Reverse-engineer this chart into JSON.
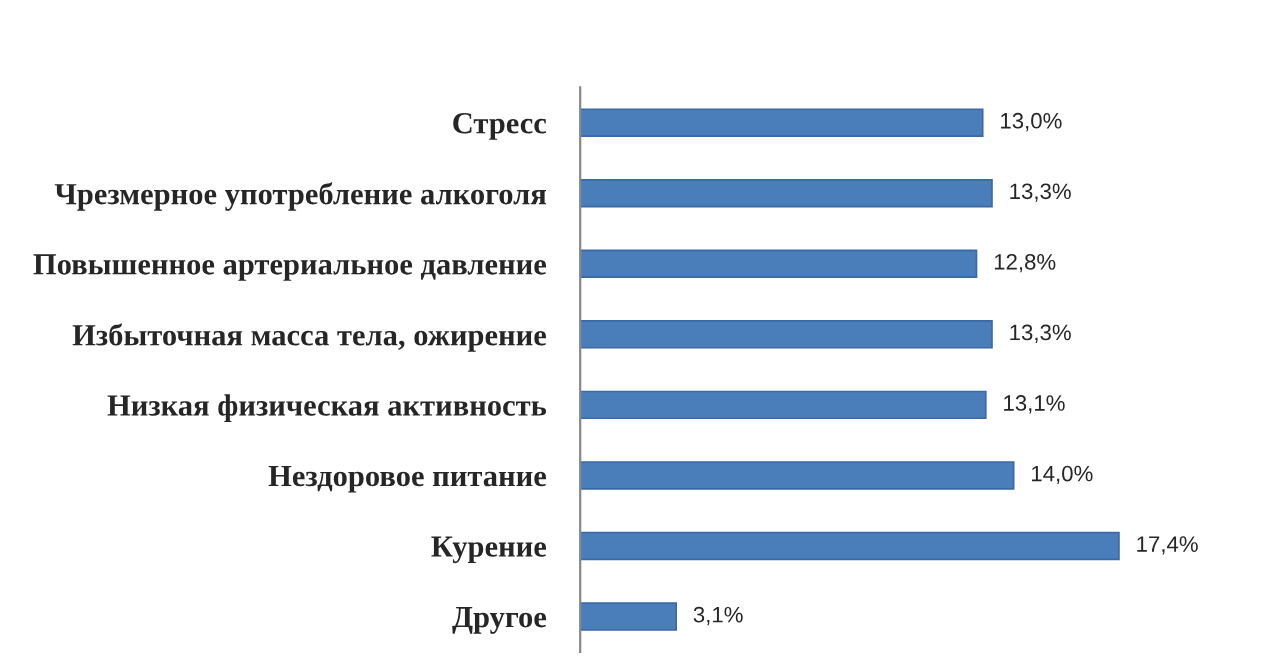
{
  "chart_data": {
    "type": "bar",
    "orientation": "horizontal",
    "categories": [
      "Стресс",
      "Чрезмерное употребление алкоголя",
      "Повышенное артериальное давление",
      "Избыточная масса тела, ожирение",
      "Низкая физическая активность",
      "Нездоровое питание",
      "Курение",
      "Другое"
    ],
    "values": [
      13.0,
      13.3,
      12.8,
      13.3,
      13.1,
      14.0,
      17.4,
      3.1
    ],
    "value_labels": [
      "13,0%",
      "13,3%",
      "12,8%",
      "13,3%",
      "13,1%",
      "14,0%",
      "17,4%",
      "3,1%"
    ],
    "color": "#4a7ebb",
    "tick_labels": "y",
    "grid": false,
    "legend": false
  }
}
